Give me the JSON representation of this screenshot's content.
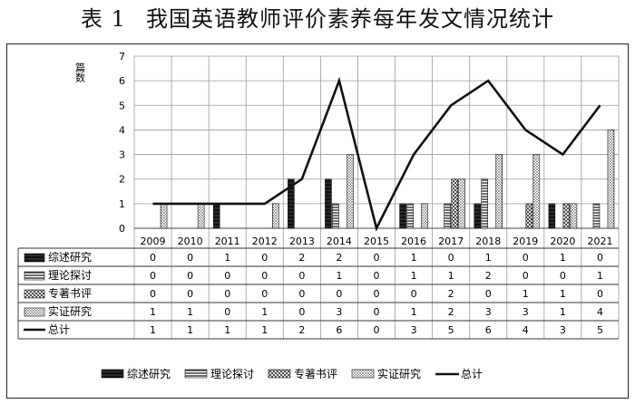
{
  "title": {
    "label": "表 1",
    "text": "我国英语教师评价素养每年发文情况统计"
  },
  "chart_data": {
    "type": "bar",
    "ylabel": "篇数",
    "ylim": [
      0,
      7
    ],
    "yticks": [
      0,
      1,
      2,
      3,
      4,
      5,
      6,
      7
    ],
    "grid": true,
    "legend_position": "bottom",
    "categories": [
      "2009",
      "2010",
      "2011",
      "2012",
      "2013",
      "2014",
      "2015",
      "2016",
      "2017",
      "2018",
      "2019",
      "2020",
      "2021"
    ],
    "series": [
      {
        "name": "综述研究",
        "kind": "bar",
        "pattern": "solid",
        "values": [
          0,
          0,
          1,
          0,
          2,
          2,
          0,
          1,
          0,
          1,
          0,
          1,
          0
        ]
      },
      {
        "name": "理论探讨",
        "kind": "bar",
        "pattern": "hlines",
        "values": [
          0,
          0,
          0,
          0,
          0,
          1,
          0,
          1,
          1,
          2,
          0,
          0,
          1
        ]
      },
      {
        "name": "专著书评",
        "kind": "bar",
        "pattern": "crosshatch",
        "values": [
          0,
          0,
          0,
          0,
          0,
          0,
          0,
          0,
          2,
          0,
          1,
          1,
          0
        ]
      },
      {
        "name": "实证研究",
        "kind": "bar",
        "pattern": "dots",
        "values": [
          1,
          1,
          0,
          1,
          0,
          3,
          0,
          1,
          2,
          3,
          3,
          1,
          4
        ]
      },
      {
        "name": "总计",
        "kind": "line",
        "values": [
          1,
          1,
          1,
          1,
          2,
          6,
          0,
          3,
          5,
          6,
          4,
          3,
          5
        ]
      }
    ]
  }
}
